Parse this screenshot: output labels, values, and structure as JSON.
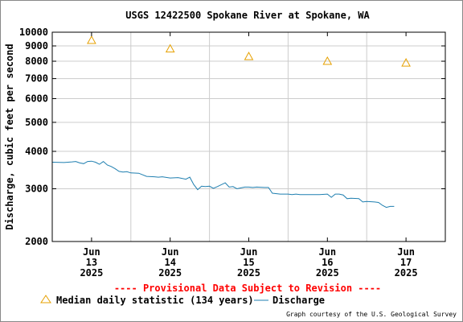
{
  "chart_data": {
    "type": "line",
    "title": "USGS 12422500 Spokane River at Spokane, WA",
    "ylabel": "Discharge, cubic feet per second",
    "xlabel": "",
    "yscale": "log",
    "ylim": [
      2000,
      10000
    ],
    "xlim": [
      12.5,
      17.5
    ],
    "y_ticks": [
      {
        "value": 2000,
        "label": "2000"
      },
      {
        "value": 3000,
        "label": "3000"
      },
      {
        "value": 4000,
        "label": "4000"
      },
      {
        "value": 5000,
        "label": "5000"
      },
      {
        "value": 6000,
        "label": "6000"
      },
      {
        "value": 7000,
        "label": "7000"
      },
      {
        "value": 8000,
        "label": "8000"
      },
      {
        "value": 9000,
        "label": "9000"
      },
      {
        "value": 10000,
        "label": "10000"
      }
    ],
    "x_ticks": [
      {
        "x": 13,
        "month": "Jun",
        "day": "13",
        "year": "2025"
      },
      {
        "x": 14,
        "month": "Jun",
        "day": "14",
        "year": "2025"
      },
      {
        "x": 15,
        "month": "Jun",
        "day": "15",
        "year": "2025"
      },
      {
        "x": 16,
        "month": "Jun",
        "day": "16",
        "year": "2025"
      },
      {
        "x": 17,
        "month": "Jun",
        "day": "17",
        "year": "2025"
      }
    ],
    "x_gridlines": [
      13.5,
      14.5,
      15.5,
      16.5
    ],
    "grid": true,
    "series": [
      {
        "name": "Discharge",
        "kind": "line",
        "color": "#1f7fb0",
        "x": [
          12.5,
          12.65,
          12.75,
          12.8,
          12.85,
          12.9,
          12.95,
          13.0,
          13.05,
          13.1,
          13.15,
          13.2,
          13.25,
          13.3,
          13.35,
          13.4,
          13.45,
          13.5,
          13.6,
          13.7,
          13.8,
          13.85,
          13.9,
          14.0,
          14.1,
          14.2,
          14.25,
          14.3,
          14.35,
          14.4,
          14.45,
          14.5,
          14.55,
          14.6,
          14.7,
          14.75,
          14.8,
          14.85,
          14.9,
          14.95,
          15.0,
          15.05,
          15.1,
          15.2,
          15.25,
          15.3,
          15.4,
          15.5,
          15.55,
          15.6,
          15.65,
          15.7,
          15.8,
          15.9,
          16.0,
          16.05,
          16.1,
          16.15,
          16.2,
          16.25,
          16.3,
          16.4,
          16.45,
          16.5,
          16.6,
          16.65,
          16.7,
          16.75,
          16.8,
          16.85
        ],
        "y": [
          3680,
          3670,
          3690,
          3700,
          3660,
          3640,
          3700,
          3710,
          3680,
          3620,
          3700,
          3600,
          3560,
          3500,
          3430,
          3410,
          3420,
          3390,
          3380,
          3300,
          3290,
          3280,
          3290,
          3260,
          3270,
          3230,
          3280,
          3100,
          2980,
          3060,
          3050,
          3060,
          3010,
          3050,
          3140,
          3040,
          3050,
          3000,
          3020,
          3040,
          3040,
          3030,
          3040,
          3030,
          3030,
          2900,
          2880,
          2880,
          2870,
          2880,
          2870,
          2870,
          2870,
          2870,
          2880,
          2810,
          2880,
          2880,
          2860,
          2780,
          2790,
          2780,
          2710,
          2720,
          2710,
          2700,
          2640,
          2600,
          2620,
          2620
        ]
      },
      {
        "name": "Median daily statistic (134 years)",
        "kind": "marker",
        "marker": "triangle",
        "color": "#e6a000",
        "x": [
          13,
          14,
          15,
          16,
          17
        ],
        "y": [
          9400,
          8800,
          8300,
          8000,
          7900
        ]
      }
    ],
    "annotations": [
      "---- Provisional Data Subject to Revision ----"
    ],
    "legend": {
      "placement": "bottom",
      "items": [
        {
          "label": "Median daily statistic (134 years)",
          "series": 1
        },
        {
          "label": "Discharge",
          "series": 0
        }
      ]
    },
    "credit": "Graph courtesy of the U.S. Geological Survey"
  },
  "colors": {
    "provisional": "#ff0000",
    "median": "#e6a000",
    "discharge": "#1f7fb0",
    "grid": "#cccccc"
  }
}
